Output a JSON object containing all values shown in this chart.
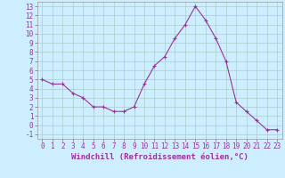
{
  "x": [
    0,
    1,
    2,
    3,
    4,
    5,
    6,
    7,
    8,
    9,
    10,
    11,
    12,
    13,
    14,
    15,
    16,
    17,
    18,
    19,
    20,
    21,
    22,
    23
  ],
  "y": [
    5,
    4.5,
    4.5,
    3.5,
    3,
    2,
    2,
    1.5,
    1.5,
    2,
    4.5,
    6.5,
    7.5,
    9.5,
    11,
    13,
    11.5,
    9.5,
    7,
    2.5,
    1.5,
    0.5,
    -0.5,
    -0.5
  ],
  "line_color": "#993399",
  "bg_color": "#cceeff",
  "grid_color": "#aacccc",
  "xlabel": "Windchill (Refroidissement éolien,°C)",
  "tick_fontsize": 5.5,
  "xlabel_fontsize": 6.5,
  "xlim": [
    -0.5,
    23.5
  ],
  "ylim": [
    -1.5,
    13.5
  ],
  "yticks": [
    -1,
    0,
    1,
    2,
    3,
    4,
    5,
    6,
    7,
    8,
    9,
    10,
    11,
    12,
    13
  ],
  "xticks": [
    0,
    1,
    2,
    3,
    4,
    5,
    6,
    7,
    8,
    9,
    10,
    11,
    12,
    13,
    14,
    15,
    16,
    17,
    18,
    19,
    20,
    21,
    22,
    23
  ]
}
